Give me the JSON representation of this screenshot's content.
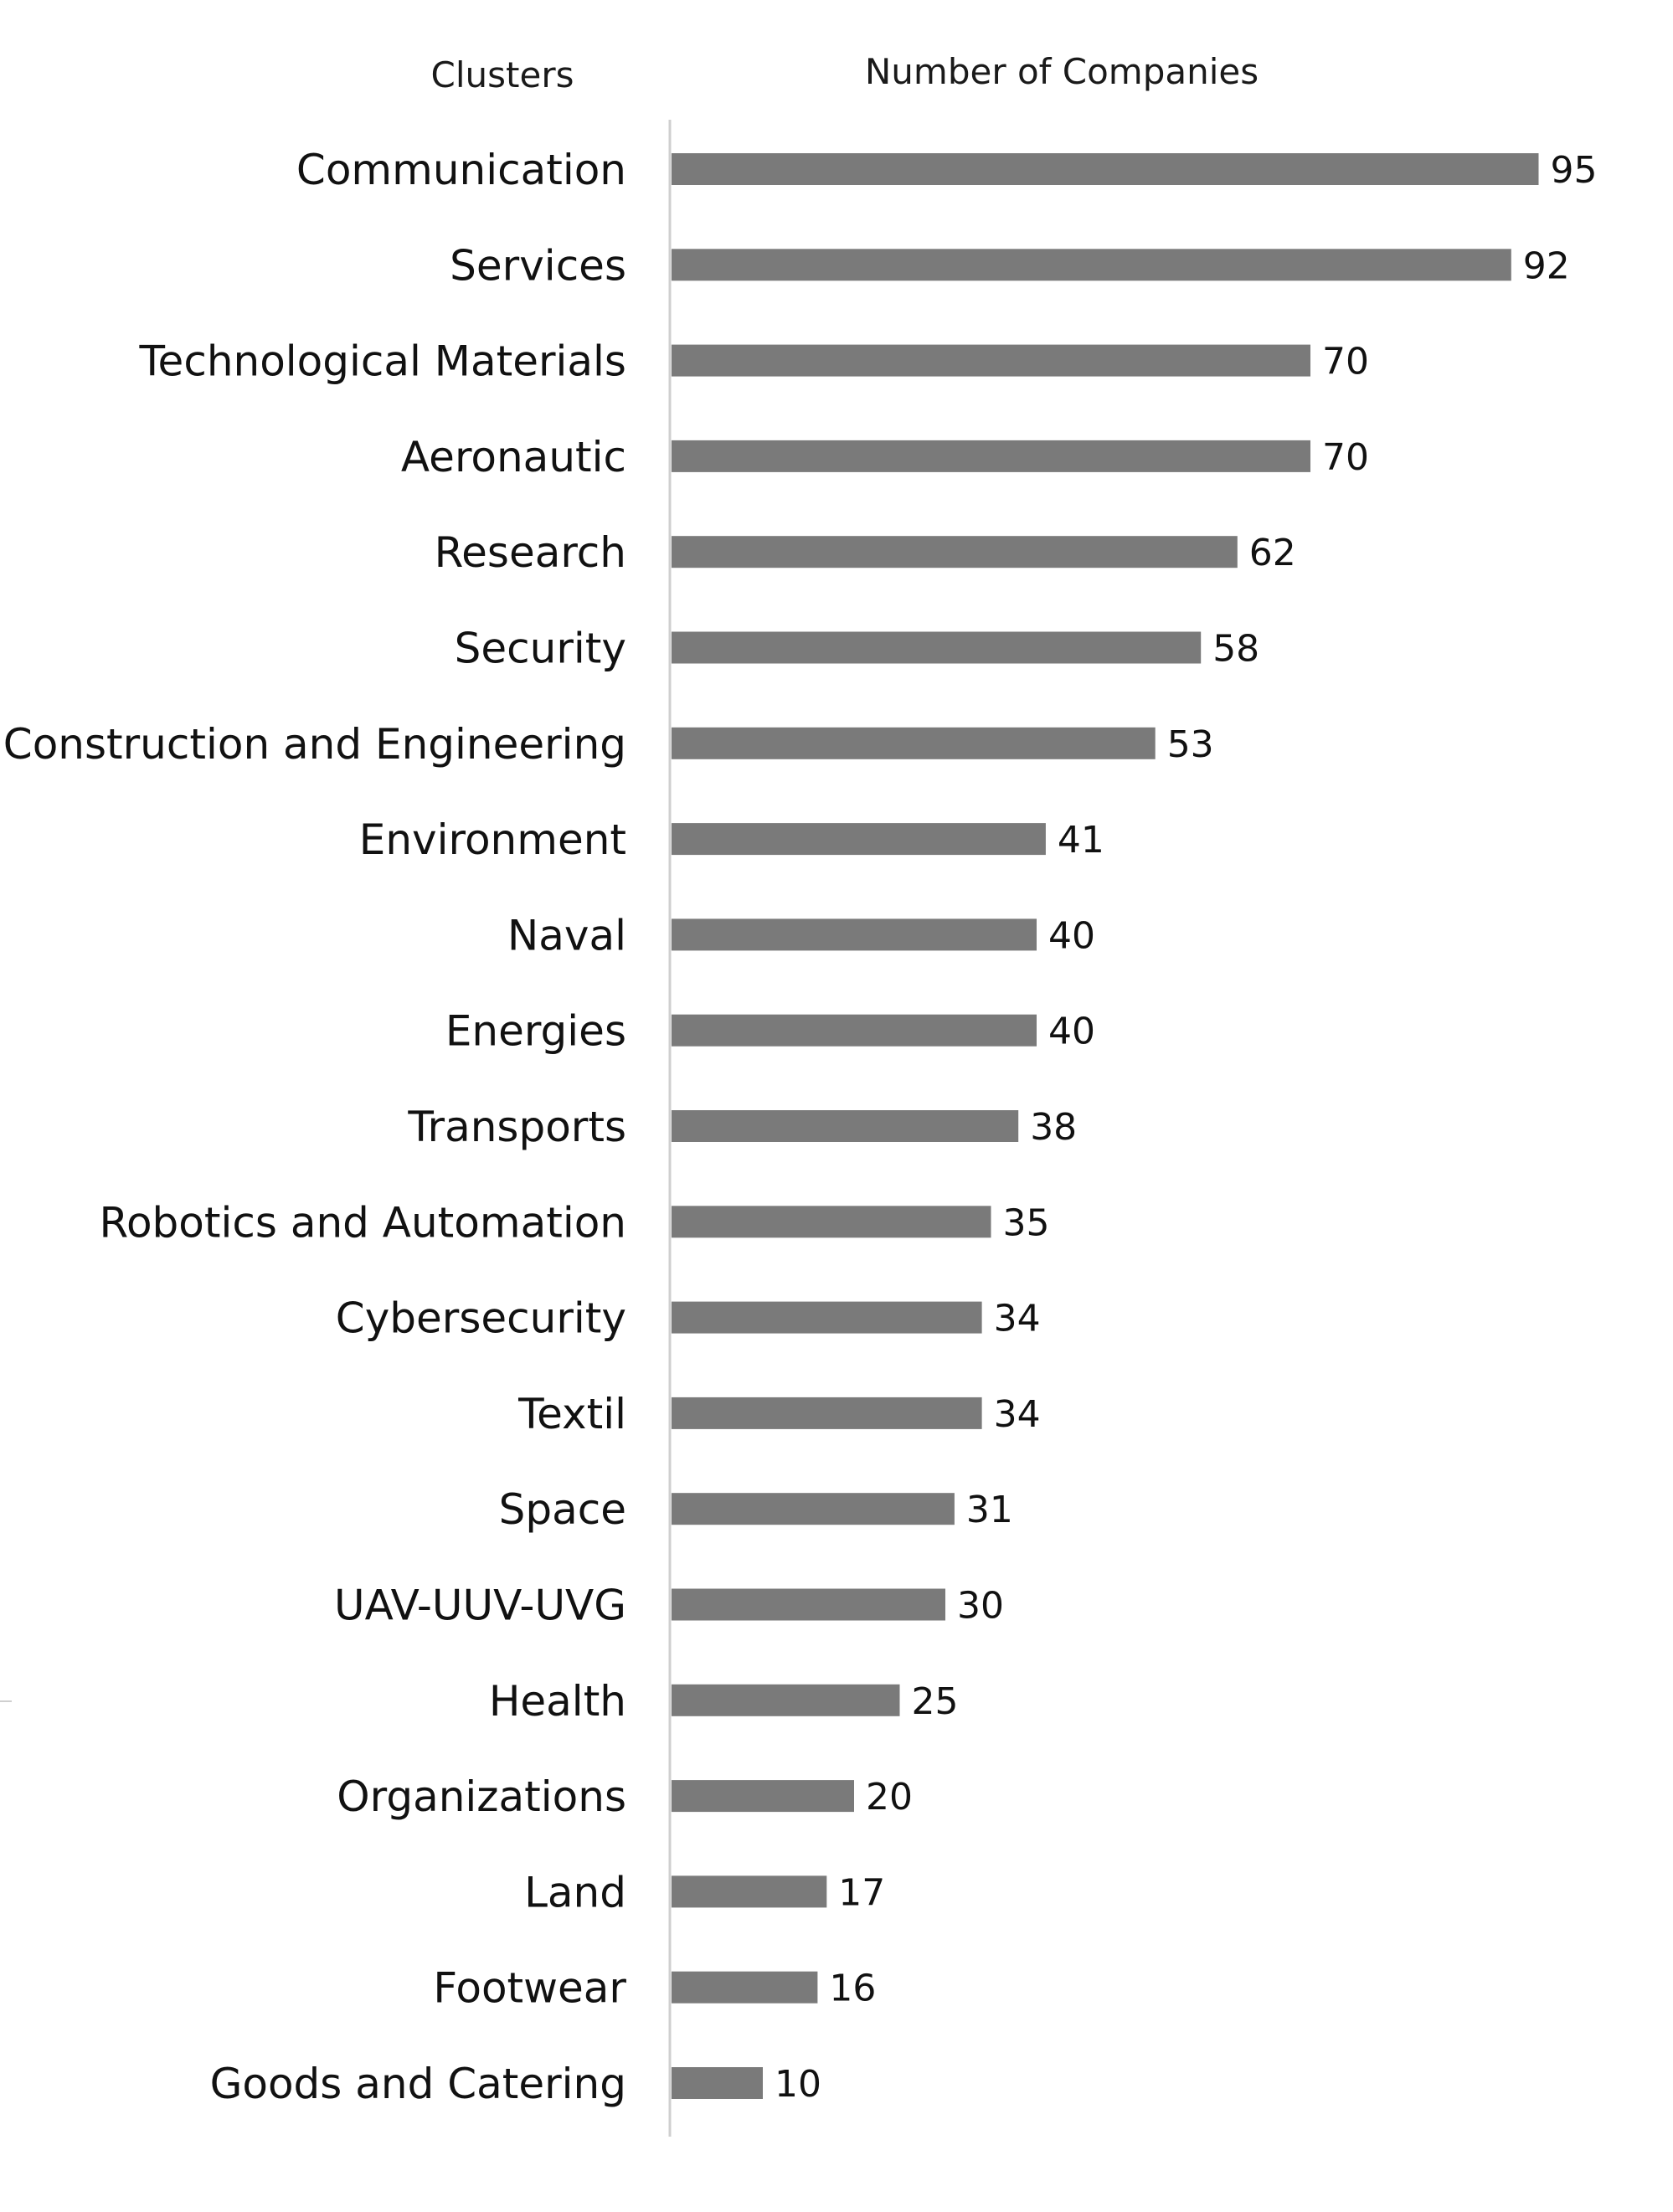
{
  "chart_data": {
    "type": "bar",
    "orientation": "horizontal",
    "category_header": "Clusters",
    "value_header": "Number of Companies",
    "categories": [
      "Communication",
      "Services",
      "Technological Materials",
      "Aeronautic",
      "Research",
      "Security",
      "Construction and Engineering",
      "Environment",
      "Naval",
      "Energies",
      "Transports",
      "Robotics and Automation",
      "Cybersecurity",
      "Textil",
      "Space",
      "UAV-UUV-UVG",
      "Health",
      "Organizations",
      "Land",
      "Footwear",
      "Goods and Catering"
    ],
    "values": [
      95,
      92,
      70,
      70,
      62,
      58,
      53,
      41,
      40,
      40,
      38,
      35,
      34,
      34,
      31,
      30,
      25,
      20,
      17,
      16,
      10
    ],
    "xlim": [
      0,
      100
    ],
    "grid": false,
    "legend": "none",
    "bar_color": "#7a7a7a"
  }
}
